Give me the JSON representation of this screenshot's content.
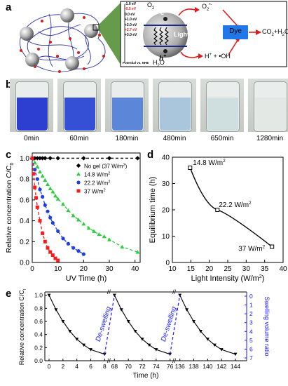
{
  "panel_letters": {
    "a": "a",
    "b": "b",
    "c": "c",
    "d": "d",
    "e": "e"
  },
  "panel_a": {
    "energy_levels": [
      "-1.0 eV",
      "-0.5 eV",
      "0.0 eV",
      "+1.0 eV",
      "+2.0 eV",
      "+2.7 eV",
      "+3.0 eV"
    ],
    "energy_colors": [
      "#000000",
      "#d62728",
      "#000000",
      "#000000",
      "#000000",
      "#d62728",
      "#000000"
    ],
    "axis_label": "Potential vs. NHE",
    "electron": "e",
    "hole": "h",
    "hole_sup": "+",
    "light": "Light",
    "o2": "O",
    "o2_sub": "2",
    "o2_radical": "O",
    "o2_radical_sub": "2",
    "o2_radical_sup": "•-",
    "h2o": "H",
    "h2o_sub": "2",
    "h2o_tail": "O",
    "products_left": "H",
    "products_left_sup": "+",
    "products_right": " + •OH",
    "dye": "Dye",
    "co2": "CO",
    "co2_sub": "2",
    "co2_tail": "+H",
    "co2_sub2": "2",
    "co2_end": "O",
    "dye_color": "#1f77e8",
    "arrow_color": "#e01b1b"
  },
  "panel_b": {
    "times": [
      "0min",
      "60min",
      "180min",
      "480min",
      "650min",
      "1280min"
    ],
    "liquid_colors": [
      "#2c3fd0",
      "#3550d4",
      "#5c86d8",
      "#a9c6dc",
      "#cfdedf",
      "#e4e8e4"
    ]
  },
  "chart_data": [
    {
      "type": "scatter",
      "panel": "c",
      "xlabel": "UV Time (h)",
      "ylabel": "Relative concentration C/C",
      "ylabel_sub": "0",
      "xlim": [
        0,
        42
      ],
      "ylim": [
        0,
        1.05
      ],
      "xticks": [
        "0",
        "10",
        "20",
        "30",
        "40"
      ],
      "yticks": [
        "0.0",
        "0.2",
        "0.4",
        "0.6",
        "0.8",
        "1.0"
      ],
      "series": [
        {
          "name": "No gel (37 W/m",
          "name_sup": "2",
          "name_end": ")",
          "color": "#000000",
          "marker": "diamond",
          "x": [
            0,
            1,
            2,
            3,
            4,
            5,
            7,
            10,
            20,
            30,
            41
          ],
          "y": [
            1.0,
            1.0,
            1.0,
            1.0,
            1.0,
            1.0,
            1.0,
            1.0,
            1.0,
            1.0,
            1.0
          ]
        },
        {
          "name": "14.8 W/m",
          "name_sup": "2",
          "name_end": "",
          "color": "#2ecc40",
          "marker": "triangle",
          "x": [
            0,
            1,
            2,
            3,
            4,
            5,
            6,
            7,
            8,
            9,
            10,
            12,
            14,
            16,
            18,
            20,
            22,
            24,
            26,
            28,
            30,
            35,
            41
          ],
          "y": [
            1.0,
            0.96,
            0.92,
            0.87,
            0.83,
            0.79,
            0.75,
            0.71,
            0.68,
            0.64,
            0.61,
            0.56,
            0.5,
            0.45,
            0.41,
            0.37,
            0.33,
            0.3,
            0.27,
            0.25,
            0.22,
            0.15,
            0.1
          ]
        },
        {
          "name": "22.2 W/m",
          "name_sup": "2",
          "name_end": "",
          "color": "#1f3fe0",
          "marker": "circle",
          "x": [
            0,
            1,
            2,
            3,
            4,
            5,
            6,
            7,
            8,
            10,
            12,
            14,
            16,
            18,
            20
          ],
          "y": [
            1.0,
            0.89,
            0.8,
            0.7,
            0.63,
            0.55,
            0.49,
            0.43,
            0.38,
            0.3,
            0.23,
            0.18,
            0.14,
            0.11,
            0.08
          ]
        },
        {
          "name": "37 W/m",
          "name_sup": "2",
          "name_end": "",
          "color": "#ff1a1a",
          "marker": "square",
          "x": [
            0,
            0.5,
            1,
            1.5,
            2,
            3,
            4,
            5,
            6,
            7,
            8,
            9,
            10
          ],
          "y": [
            1.0,
            0.85,
            0.72,
            0.62,
            0.53,
            0.4,
            0.28,
            0.2,
            0.14,
            0.1,
            0.07,
            0.04,
            0.02
          ]
        }
      ]
    },
    {
      "type": "line",
      "panel": "d",
      "xlabel": "Light Intensity (W/m",
      "xlabel_sup": "2",
      "xlabel_end": ")",
      "ylabel": "Equilibrium time (h)",
      "xlim": [
        10,
        40
      ],
      "ylim": [
        0,
        40
      ],
      "xticks": [
        "10",
        "15",
        "20",
        "25",
        "30",
        "35",
        "40"
      ],
      "yticks": [
        "0",
        "10",
        "20",
        "30",
        "40"
      ],
      "x": [
        14.8,
        22.2,
        37
      ],
      "y": [
        36,
        20,
        6
      ],
      "point_labels": [
        {
          "text": "14.8 W/m",
          "sup": "2"
        },
        {
          "text": "22.2 W/m",
          "sup": "2"
        },
        {
          "text": "37 W/m",
          "sup": "2"
        }
      ]
    },
    {
      "type": "line",
      "panel": "e",
      "xlabel": "Time (h)",
      "ylabel_left": "Relative concentration C/C",
      "ylabel_left_sub": "0",
      "ylabel_right": "Swelling volume ratio",
      "ylim_left": [
        0,
        1.05
      ],
      "ylim_right_labels": [
        "0",
        "1",
        "2",
        "3",
        "4",
        "5",
        "6",
        "7"
      ],
      "yticks_left": [
        "0.0",
        "0.2",
        "0.4",
        "0.6",
        "0.8",
        "1.0"
      ],
      "xticks": [
        "0",
        "2",
        "4",
        "6",
        "8",
        "68",
        "70",
        "72",
        "74",
        "76",
        "136",
        "138",
        "140",
        "142",
        "144"
      ],
      "deswelling_label": "De-swelling",
      "deswelling_color": "#1a1aff",
      "cycles": [
        {
          "x": [
            0,
            1,
            2,
            3,
            4,
            5,
            6,
            8
          ],
          "y": [
            1.0,
            0.78,
            0.6,
            0.45,
            0.33,
            0.24,
            0.17,
            0.1
          ]
        },
        {
          "x": [
            68,
            69,
            70,
            71,
            72,
            73,
            74,
            76
          ],
          "y": [
            1.0,
            0.78,
            0.6,
            0.45,
            0.33,
            0.24,
            0.17,
            0.1
          ]
        },
        {
          "x": [
            136,
            137,
            138,
            139,
            140,
            141,
            142,
            144
          ],
          "y": [
            1.0,
            0.78,
            0.6,
            0.45,
            0.33,
            0.24,
            0.17,
            0.1
          ]
        }
      ]
    }
  ]
}
